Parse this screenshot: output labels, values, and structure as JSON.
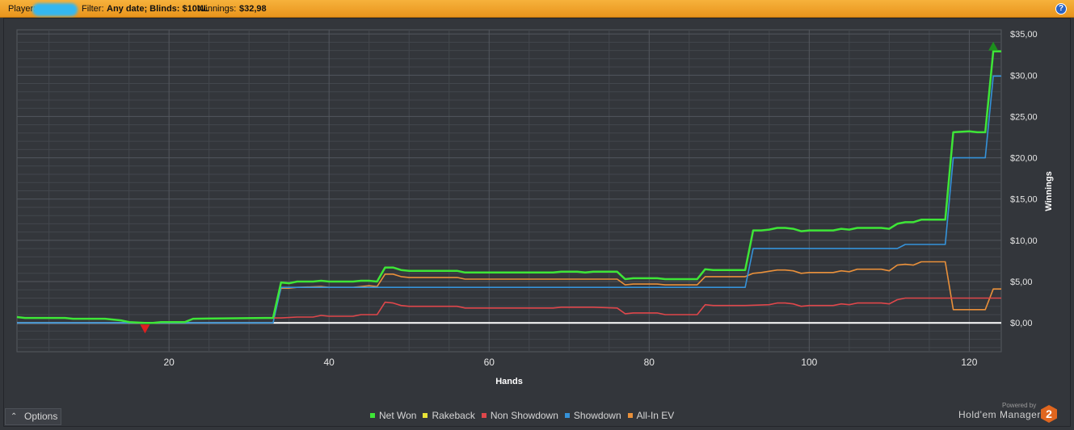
{
  "header": {
    "player_label": "Player:",
    "filter_label": "Filter:",
    "filter_value": "Any date; Blinds: $10NL",
    "winnings_label": "Winnings:",
    "winnings_value": "$32,98",
    "help_glyph": "?"
  },
  "options": {
    "label": "Options"
  },
  "branding": {
    "powered_by": "Powered by",
    "product": "Hold'em Manager",
    "badge_number": "2",
    "badge_color": "#e0661f"
  },
  "colors": {
    "background": "#33363b",
    "grid": "#53575e",
    "zero_line": "#ffffff",
    "net_won": "#3ee637",
    "rakeback": "#e8e337",
    "non_showdown": "#e0474b",
    "showdown": "#3592d9",
    "all_in_ev": "#e9903a",
    "max_marker": "#1d8f1d",
    "min_marker": "#e11f1f"
  },
  "chart_data": {
    "type": "line",
    "xlabel": "Hands",
    "ylabel": "Winnings",
    "xlim": [
      1,
      124
    ],
    "ylim": [
      -3.5,
      35.5
    ],
    "xticks": [
      20,
      40,
      60,
      80,
      100,
      120
    ],
    "yticks": [
      0,
      5,
      10,
      15,
      20,
      25,
      30,
      35
    ],
    "ytick_labels": [
      "$0,00",
      "$5,00",
      "$10,00",
      "$15,00",
      "$20,00",
      "$25,00",
      "$30,00",
      "$35,00"
    ],
    "grid": true,
    "legend_position": "bottom",
    "series": [
      {
        "name": "Net Won",
        "color_key": "net_won",
        "points": [
          [
            1,
            0.7
          ],
          [
            2,
            0.6
          ],
          [
            7,
            0.6
          ],
          [
            8,
            0.5
          ],
          [
            12,
            0.5
          ],
          [
            14,
            0.3
          ],
          [
            15,
            0.1
          ],
          [
            17,
            0
          ],
          [
            18,
            0
          ],
          [
            19,
            0.1
          ],
          [
            21,
            0.1
          ],
          [
            22,
            0.1
          ],
          [
            23,
            0.5
          ],
          [
            32,
            0.6
          ],
          [
            33,
            0.6
          ],
          [
            34,
            4.9
          ],
          [
            35,
            4.8
          ],
          [
            36,
            5
          ],
          [
            38,
            5
          ],
          [
            39,
            5.1
          ],
          [
            40,
            5
          ],
          [
            43,
            5
          ],
          [
            44,
            5.1
          ],
          [
            45,
            5.1
          ],
          [
            46,
            5
          ],
          [
            47,
            6.7
          ],
          [
            48,
            6.7
          ],
          [
            49,
            6.4
          ],
          [
            50,
            6.3
          ],
          [
            56,
            6.3
          ],
          [
            57,
            6.1
          ],
          [
            68,
            6.1
          ],
          [
            69,
            6.2
          ],
          [
            71,
            6.2
          ],
          [
            72,
            6.1
          ],
          [
            73,
            6.2
          ],
          [
            76,
            6.2
          ],
          [
            77,
            5.3
          ],
          [
            78,
            5.4
          ],
          [
            81,
            5.4
          ],
          [
            82,
            5.3
          ],
          [
            86,
            5.3
          ],
          [
            87,
            6.5
          ],
          [
            88,
            6.4
          ],
          [
            92,
            6.4
          ],
          [
            93,
            11.2
          ],
          [
            94,
            11.2
          ],
          [
            95,
            11.3
          ],
          [
            96,
            11.5
          ],
          [
            97,
            11.5
          ],
          [
            98,
            11.4
          ],
          [
            99,
            11.1
          ],
          [
            100,
            11.2
          ],
          [
            103,
            11.2
          ],
          [
            104,
            11.4
          ],
          [
            105,
            11.3
          ],
          [
            106,
            11.5
          ],
          [
            109,
            11.5
          ],
          [
            110,
            11.4
          ],
          [
            111,
            12
          ],
          [
            112,
            12.2
          ],
          [
            113,
            12.2
          ],
          [
            114,
            12.5
          ],
          [
            117,
            12.5
          ],
          [
            118,
            23.1
          ],
          [
            120,
            23.2
          ],
          [
            121,
            23.1
          ],
          [
            122,
            23.1
          ],
          [
            123,
            32.9
          ],
          [
            124,
            32.9
          ]
        ]
      },
      {
        "name": "Rakeback",
        "color_key": "rakeback",
        "points": []
      },
      {
        "name": "Non Showdown",
        "color_key": "non_showdown",
        "points": [
          [
            1,
            0.7
          ],
          [
            2,
            0.6
          ],
          [
            7,
            0.6
          ],
          [
            8,
            0.5
          ],
          [
            12,
            0.5
          ],
          [
            14,
            0.3
          ],
          [
            15,
            0.1
          ],
          [
            17,
            0
          ],
          [
            18,
            0
          ],
          [
            19,
            0.1
          ],
          [
            21,
            0.1
          ],
          [
            22,
            0.1
          ],
          [
            23,
            0.5
          ],
          [
            32,
            0.6
          ],
          [
            33,
            0.6
          ],
          [
            34,
            0.6
          ],
          [
            36,
            0.7
          ],
          [
            38,
            0.7
          ],
          [
            39,
            0.9
          ],
          [
            40,
            0.8
          ],
          [
            43,
            0.8
          ],
          [
            44,
            1
          ],
          [
            46,
            1
          ],
          [
            47,
            2.5
          ],
          [
            48,
            2.4
          ],
          [
            49,
            2.1
          ],
          [
            50,
            2
          ],
          [
            56,
            2
          ],
          [
            57,
            1.8
          ],
          [
            68,
            1.8
          ],
          [
            69,
            1.9
          ],
          [
            73,
            1.9
          ],
          [
            76,
            1.8
          ],
          [
            77,
            1.1
          ],
          [
            78,
            1.2
          ],
          [
            81,
            1.2
          ],
          [
            82,
            1
          ],
          [
            86,
            1
          ],
          [
            87,
            2.2
          ],
          [
            88,
            2.1
          ],
          [
            92,
            2.1
          ],
          [
            95,
            2.2
          ],
          [
            96,
            2.4
          ],
          [
            97,
            2.4
          ],
          [
            98,
            2.3
          ],
          [
            99,
            2
          ],
          [
            100,
            2.1
          ],
          [
            103,
            2.1
          ],
          [
            104,
            2.3
          ],
          [
            105,
            2.2
          ],
          [
            106,
            2.4
          ],
          [
            109,
            2.4
          ],
          [
            110,
            2.3
          ],
          [
            111,
            2.8
          ],
          [
            112,
            3
          ],
          [
            124,
            3
          ]
        ]
      },
      {
        "name": "Showdown",
        "color_key": "showdown",
        "points": [
          [
            1,
            0
          ],
          [
            33,
            0
          ],
          [
            34,
            4.3
          ],
          [
            46,
            4.3
          ],
          [
            47,
            4.3
          ],
          [
            92,
            4.3
          ],
          [
            93,
            9
          ],
          [
            111,
            9
          ],
          [
            112,
            9.5
          ],
          [
            117,
            9.5
          ],
          [
            118,
            20
          ],
          [
            122,
            20
          ],
          [
            123,
            29.9
          ],
          [
            124,
            29.9
          ]
        ]
      },
      {
        "name": "All-In EV",
        "color_key": "all_in_ev",
        "points": [
          [
            1,
            0.7
          ],
          [
            2,
            0.6
          ],
          [
            7,
            0.6
          ],
          [
            8,
            0.5
          ],
          [
            12,
            0.5
          ],
          [
            14,
            0.3
          ],
          [
            15,
            0.1
          ],
          [
            17,
            0
          ],
          [
            18,
            0
          ],
          [
            19,
            0.1
          ],
          [
            21,
            0.1
          ],
          [
            22,
            0.1
          ],
          [
            23,
            0.5
          ],
          [
            32,
            0.6
          ],
          [
            33,
            0.6
          ],
          [
            34,
            4.2
          ],
          [
            35,
            4.2
          ],
          [
            36,
            4.3
          ],
          [
            39,
            4.4
          ],
          [
            40,
            4.3
          ],
          [
            43,
            4.3
          ],
          [
            44,
            4.4
          ],
          [
            45,
            4.5
          ],
          [
            46,
            4.4
          ],
          [
            47,
            5.9
          ],
          [
            48,
            5.9
          ],
          [
            49,
            5.6
          ],
          [
            50,
            5.5
          ],
          [
            56,
            5.5
          ],
          [
            57,
            5.3
          ],
          [
            76,
            5.3
          ],
          [
            77,
            4.6
          ],
          [
            78,
            4.7
          ],
          [
            81,
            4.7
          ],
          [
            82,
            4.6
          ],
          [
            86,
            4.6
          ],
          [
            87,
            5.6
          ],
          [
            88,
            5.6
          ],
          [
            92,
            5.6
          ],
          [
            93,
            6
          ],
          [
            94,
            6.1
          ],
          [
            96,
            6.4
          ],
          [
            97,
            6.4
          ],
          [
            98,
            6.3
          ],
          [
            99,
            6
          ],
          [
            100,
            6.1
          ],
          [
            103,
            6.1
          ],
          [
            104,
            6.3
          ],
          [
            105,
            6.2
          ],
          [
            106,
            6.5
          ],
          [
            109,
            6.5
          ],
          [
            110,
            6.3
          ],
          [
            111,
            7
          ],
          [
            112,
            7.1
          ],
          [
            113,
            7
          ],
          [
            114,
            7.4
          ],
          [
            117,
            7.4
          ],
          [
            118,
            1.6
          ],
          [
            122,
            1.6
          ],
          [
            123,
            4.1
          ],
          [
            124,
            4.1
          ]
        ]
      }
    ],
    "markers": [
      {
        "type": "max",
        "x": 123,
        "y": 32.9,
        "color_key": "max_marker"
      },
      {
        "type": "min",
        "x": 17,
        "y": 0,
        "color_key": "min_marker"
      }
    ]
  }
}
